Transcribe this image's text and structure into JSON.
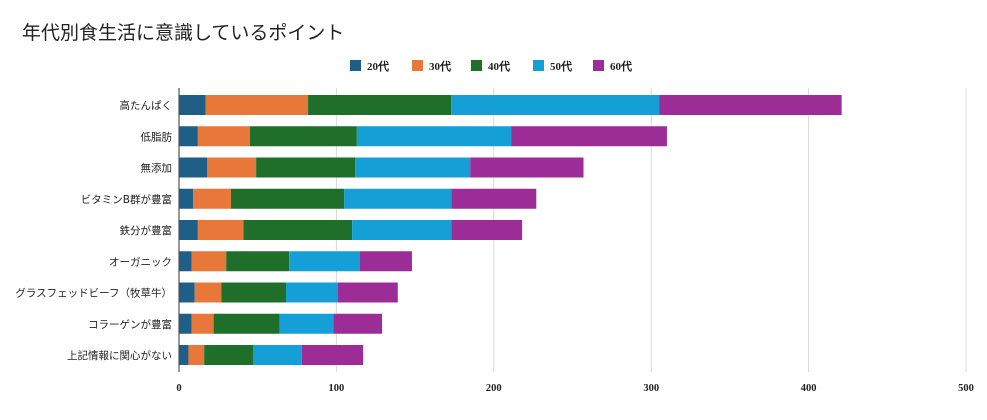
{
  "chart_data": {
    "type": "bar",
    "orientation": "horizontal",
    "stacked": true,
    "title": "年代別食生活に意識しているポイント",
    "xlabel": "",
    "ylabel": "",
    "xlim": [
      0,
      500
    ],
    "xticks": [
      0,
      100,
      200,
      300,
      400,
      500
    ],
    "grid": true,
    "legend_position": "top-center",
    "categories": [
      "高たんぱく",
      "低脂肪",
      "無添加",
      "ビタミンB群が豊富",
      "鉄分が豊富",
      "オーガニック",
      "グラスフェッドビーフ（牧草牛）",
      "コラーゲンが豊富",
      "上記情報に関心がない"
    ],
    "series": [
      {
        "name": "20代",
        "color": "#1f5e87",
        "values": [
          17,
          12,
          18,
          9,
          12,
          8,
          10,
          8,
          6
        ]
      },
      {
        "name": "30代",
        "color": "#e8773a",
        "values": [
          65,
          33,
          31,
          24,
          29,
          22,
          17,
          14,
          10
        ]
      },
      {
        "name": "40代",
        "color": "#1f6f2a",
        "values": [
          91,
          68,
          63,
          72,
          69,
          40,
          41,
          42,
          31
        ]
      },
      {
        "name": "50代",
        "color": "#14a0d6",
        "values": [
          132,
          98,
          73,
          68,
          63,
          45,
          33,
          34,
          31
        ]
      },
      {
        "name": "60代",
        "color": "#9c2d96",
        "values": [
          116,
          99,
          72,
          54,
          45,
          33,
          38,
          31,
          39
        ]
      }
    ]
  }
}
